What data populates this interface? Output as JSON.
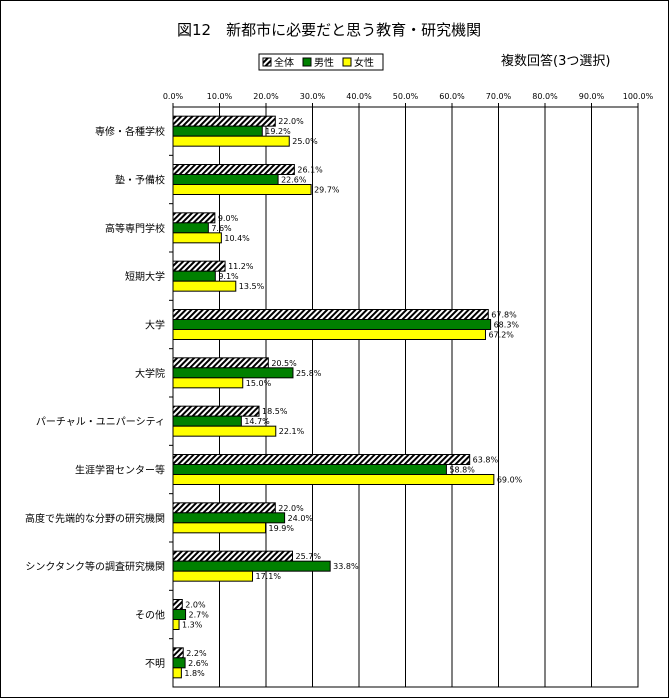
{
  "chart_data": {
    "type": "bar",
    "orientation": "horizontal",
    "title": "図12　新都市に必要だと思う教育・研究機関",
    "subtitle": "複数回答(3つ選択)",
    "xlabel": "",
    "ylabel": "",
    "xlim": [
      0,
      100
    ],
    "x_ticks": [
      "0.0%",
      "10.0%",
      "20.0%",
      "30.0%",
      "40.0%",
      "50.0%",
      "60.0%",
      "70.0%",
      "80.0%",
      "90.0%",
      "100.0%"
    ],
    "grid": true,
    "legend_position": "top-center",
    "categories": [
      "専修・各種学校",
      "塾・予備校",
      "高等専門学校",
      "短期大学",
      "大学",
      "大学院",
      "パーチャル・ユニパーシティ",
      "生涯学習センター等",
      "高度で先端的な分野の研究機関",
      "シンクタンク等の調査研究機関",
      "その他",
      "不明"
    ],
    "series": [
      {
        "name": "全体",
        "pattern": "hatched",
        "color": "#000000",
        "values": [
          22.0,
          26.1,
          9.0,
          11.2,
          67.8,
          20.5,
          18.5,
          63.8,
          22.0,
          25.7,
          2.0,
          2.2
        ],
        "labels": [
          "22.0%",
          "26.1%",
          "9.0%",
          "11.2%",
          "67.8%",
          "20.5%",
          "18.5%",
          "63.8%",
          "22.0%",
          "25.7%",
          "2.0%",
          "2.2%"
        ]
      },
      {
        "name": "男性",
        "color": "#008000",
        "values": [
          19.2,
          22.6,
          7.6,
          9.1,
          68.3,
          25.8,
          14.7,
          58.8,
          24.0,
          33.8,
          2.7,
          2.6
        ],
        "labels": [
          "19.2%",
          "22.6%",
          "7.6%",
          "9.1%",
          "68.3%",
          "25.8%",
          "14.7%",
          "58.8%",
          "24.0%",
          "33.8%",
          "2.7%",
          "2.6%"
        ]
      },
      {
        "name": "女性",
        "color": "#ffff00",
        "values": [
          25.0,
          29.7,
          10.4,
          13.5,
          67.2,
          15.0,
          22.1,
          69.0,
          19.9,
          17.1,
          1.3,
          1.8
        ],
        "labels": [
          "25.0%",
          "29.7%",
          "10.4%",
          "13.5%",
          "67.2%",
          "15.0%",
          "22.1%",
          "69.0%",
          "19.9%",
          "17.1%",
          "1.3%",
          "1.8%"
        ]
      }
    ]
  }
}
